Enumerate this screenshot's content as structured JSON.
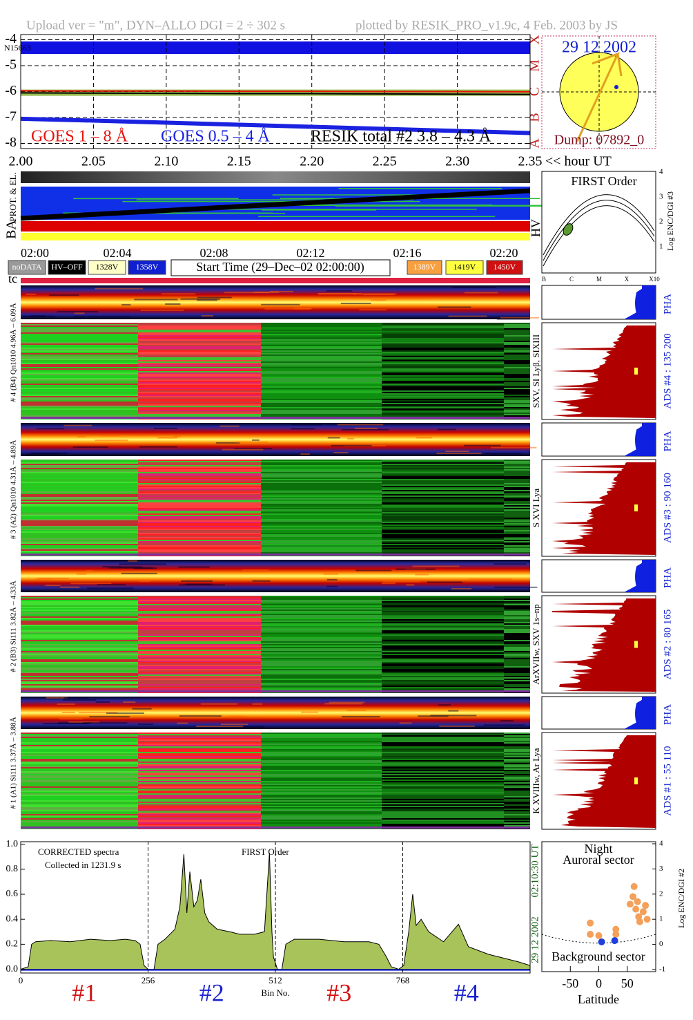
{
  "header": {
    "left": "Upload ver = \"m\", DYN–ALLO DGI =   2 ÷ 302 s",
    "right": "plotted by RESIK_PRO_v1.9c, 4 Feb. 2003 by JS"
  },
  "sun": {
    "date": "29 12 2002",
    "dump": "Dump: 07892_0"
  },
  "timeline": {
    "rows": [
      "PROT. & EL.",
      "BA"
    ],
    "times": [
      "02:00",
      "02:04",
      "02:08",
      "02:12",
      "02:16",
      "02:20"
    ],
    "legend": [
      "noDATA",
      "HV–OFF",
      "1328V",
      "1358V",
      "1389V",
      "1419V",
      "1450V"
    ],
    "start_time": "Start Time (29–Dec–02 02:00:00)",
    "tc": "tc"
  },
  "hv": {
    "title": "FIRST Order",
    "label": "HV",
    "ylabel": "Log ENC/DGI #3",
    "yticks": [
      "1",
      "2",
      "3",
      "4"
    ],
    "xticks": [
      "B",
      "C",
      "M",
      "X",
      "X10"
    ]
  },
  "groups": [
    {
      "crystal": "# 4 (B4) Qn1010 4.96Å – 6.09Å",
      "lines": "SXV, SI Lyβ, SIXIII",
      "pha": "PHA",
      "ads": "ADS #4 :   135 200"
    },
    {
      "crystal": "# 3 (A2) Qn1010 4.31Å – 4.89Å",
      "lines": "S XVI Lya",
      "pha": "PHA",
      "ads": "ADS #3 :   90 160"
    },
    {
      "crystal": "# 2 (B3) Si111 3.82Å – 4.33Å",
      "lines": "ArXVIIw, SXV 1s–np",
      "pha": "PHA",
      "ads": "ADS #2 :   80 165"
    },
    {
      "crystal": "# 1 (A1) Si111 3.37Å – 3.88Å",
      "lines": "K XVIIIw, Ar Lya",
      "pha": "PHA",
      "ads": "ADS #1 :   55 110"
    }
  ],
  "chart_data": [
    {
      "type": "line",
      "xlabel": "<< hour UT",
      "annotation": "N15663",
      "x": [
        2.0,
        2.05,
        2.1,
        2.15,
        2.2,
        2.25,
        2.3,
        2.35
      ],
      "xlim": [
        2.0,
        2.35
      ],
      "xticks": [
        {
          "value": 2.0,
          "label": "2.00"
        },
        {
          "value": 2.05,
          "label": "2.05"
        },
        {
          "value": 2.1,
          "label": "2.10"
        },
        {
          "value": 2.15,
          "label": "2.15"
        },
        {
          "value": 2.2,
          "label": "2.20"
        },
        {
          "value": 2.25,
          "label": "2.25"
        },
        {
          "value": 2.3,
          "label": "2.30"
        },
        {
          "value": 2.35,
          "label": "2.35"
        }
      ],
      "ylim": [
        -8.2,
        -3.8
      ],
      "yticks": [
        -8,
        -7,
        -6,
        -5,
        -4
      ],
      "y2ticks": [
        {
          "value": -8,
          "label": "A"
        },
        {
          "value": -7,
          "label": "B"
        },
        {
          "value": -6,
          "label": "C"
        },
        {
          "value": -5,
          "label": "M"
        },
        {
          "value": -4,
          "label": "X"
        }
      ],
      "grid": true,
      "series": [
        {
          "name": "GOES 1 – 8 Å",
          "color": "#e8120c",
          "values": [
            -5.97,
            -5.98,
            -5.98,
            -5.99,
            -5.99,
            -6.0,
            -6.0,
            -6.01
          ]
        },
        {
          "name": "GOES 0.5 – 4 Å",
          "color": "#1a22e0",
          "values": [
            -7.05,
            -7.12,
            -7.2,
            -7.28,
            -7.36,
            -7.44,
            -7.52,
            -7.6
          ]
        },
        {
          "name": "RESIK total #2  3.8 – 4.3 Å",
          "color": "#000000",
          "values": [
            -6.05,
            -6.06,
            -6.07,
            -6.08,
            -6.08,
            -6.09,
            -6.1,
            -6.11
          ]
        }
      ]
    },
    {
      "type": "area",
      "xlabel": "Bin No.",
      "annotations": [
        "CORRECTED spectra",
        "Collected in  1231.9 s",
        "FIRST Order"
      ],
      "side_labels": [
        "02:10:30 UT",
        "29 12 2002"
      ],
      "color": "#a8c35a",
      "x": [
        0,
        15,
        22,
        30,
        60,
        100,
        140,
        180,
        210,
        230,
        240,
        248,
        256,
        268,
        276,
        290,
        310,
        320,
        328,
        334,
        340,
        348,
        355,
        362,
        370,
        378,
        395,
        420,
        440,
        470,
        490,
        500,
        505,
        508,
        516,
        525,
        533,
        550,
        600,
        650,
        700,
        720,
        735,
        745,
        760,
        770,
        780,
        788,
        795,
        805,
        820,
        850,
        880,
        900,
        940,
        980,
        1000,
        1024
      ],
      "values": [
        0.0,
        0.02,
        0.2,
        0.22,
        0.23,
        0.22,
        0.24,
        0.23,
        0.24,
        0.23,
        0.2,
        0.03,
        0.0,
        0.0,
        0.2,
        0.24,
        0.32,
        0.5,
        0.92,
        0.45,
        0.78,
        0.5,
        0.55,
        0.72,
        0.45,
        0.38,
        0.32,
        0.3,
        0.28,
        0.28,
        0.3,
        0.93,
        0.3,
        0.1,
        0.0,
        0.0,
        0.2,
        0.24,
        0.24,
        0.22,
        0.22,
        0.2,
        0.1,
        0.02,
        0.0,
        0.03,
        0.3,
        0.6,
        0.35,
        0.4,
        0.3,
        0.22,
        0.36,
        0.18,
        0.12,
        0.08,
        0.06,
        0.03
      ],
      "xlim": [
        0,
        1024
      ],
      "xticks": [
        0,
        256,
        512,
        768
      ],
      "ylim": [
        -0.03,
        1.02
      ],
      "yticks": [
        {
          "value": 0,
          "label": "0.0"
        },
        {
          "value": 0.2,
          "label": "0.2"
        },
        {
          "value": 0.4,
          "label": "0.4"
        },
        {
          "value": 0.6,
          "label": "0.6"
        },
        {
          "value": 0.8,
          "label": "0.8"
        },
        {
          "value": 1.0,
          "label": "1.0"
        }
      ],
      "section_labels": [
        {
          "label": "#1",
          "color": "#d41010"
        },
        {
          "label": "#2",
          "color": "#1a22d0"
        },
        {
          "label": "#3",
          "color": "#d41010"
        },
        {
          "label": "#4",
          "color": "#1a22d0"
        }
      ]
    },
    {
      "type": "scatter",
      "title": "Night",
      "annotations": [
        "Auroral sector",
        "Background sector"
      ],
      "xlabel": "Latitude",
      "ylabel": "Log ENC/DGI #2",
      "xlim": [
        -100,
        100
      ],
      "xticks": [
        -50,
        0,
        50
      ],
      "ylim": [
        -1,
        4
      ],
      "yticks": [
        -1,
        0,
        1,
        2,
        3,
        4
      ],
      "series": [
        {
          "color": "#f4a05a",
          "x": [
            -15,
            -15,
            0,
            30,
            30,
            55,
            60,
            62,
            65,
            68,
            70,
            72,
            78,
            82,
            85
          ],
          "values": [
            0.85,
            0.4,
            0.35,
            0.6,
            0.4,
            1.6,
            1.9,
            2.3,
            1.4,
            1.7,
            1.1,
            0.9,
            1.3,
            1.55,
            1.0
          ]
        },
        {
          "color": "#1f3fdc",
          "x": [
            5,
            28
          ],
          "values": [
            0.1,
            0.15
          ]
        }
      ]
    }
  ]
}
